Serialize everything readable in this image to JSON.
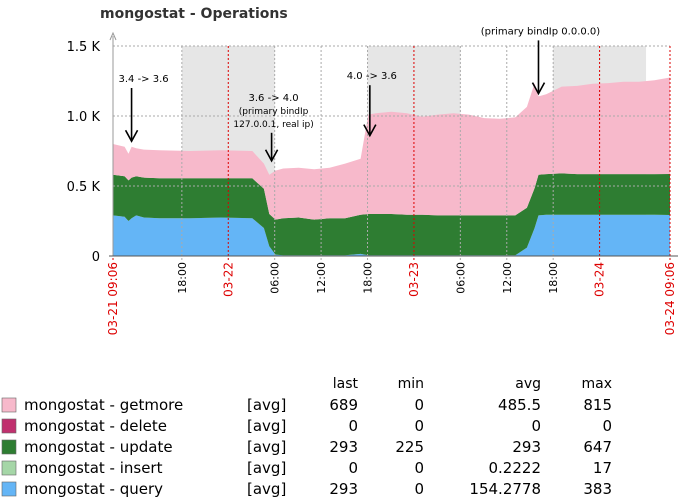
{
  "colors": {
    "getmore": "#f7b9cb",
    "delete": "#c0306e",
    "update": "#2e7d32",
    "insert": "#a5d6a7",
    "query": "#64b5f6",
    "shade": "#e6e6e6",
    "grid": "#aaaaaa",
    "red": "#dd0000"
  },
  "chart_data": {
    "type": "area",
    "title": "mongostat - Operations",
    "stacked": true,
    "ylim": [
      0,
      1500
    ],
    "yticks": [
      {
        "value": 0,
        "label": "0"
      },
      {
        "value": 500,
        "label": "0.5 K"
      },
      {
        "value": 1000,
        "label": "1.0 K"
      },
      {
        "value": 1500,
        "label": "1.5 K"
      }
    ],
    "xlim": [
      0,
      72
    ],
    "x_unit": "hours since 03-21 09:06",
    "xticks": [
      {
        "x": 0,
        "label": "03-21 09:06",
        "style": "red-edge"
      },
      {
        "x": 8.9,
        "label": "18:00",
        "style": "black"
      },
      {
        "x": 14.9,
        "label": "03-22",
        "style": "red"
      },
      {
        "x": 20.9,
        "label": "06:00",
        "style": "black"
      },
      {
        "x": 26.9,
        "label": "12:00",
        "style": "black"
      },
      {
        "x": 32.9,
        "label": "18:00",
        "style": "black"
      },
      {
        "x": 38.9,
        "label": "03-23",
        "style": "red"
      },
      {
        "x": 44.9,
        "label": "06:00",
        "style": "black"
      },
      {
        "x": 50.9,
        "label": "12:00",
        "style": "black"
      },
      {
        "x": 56.9,
        "label": "18:00",
        "style": "black"
      },
      {
        "x": 62.9,
        "label": "03-24",
        "style": "red"
      },
      {
        "x": 72,
        "label": "03-24 09:06",
        "style": "red-edge"
      }
    ],
    "shaded_hours": [
      [
        8.9,
        20.9
      ],
      [
        32.9,
        44.9
      ],
      [
        56.9,
        68.9
      ]
    ],
    "x": [
      0,
      1.5,
      2,
      2.4,
      3,
      4,
      6,
      10,
      14,
      18,
      19.5,
      20.2,
      21,
      22,
      24,
      26,
      28,
      30,
      32,
      33,
      34,
      36,
      38,
      40,
      42,
      44,
      46,
      48,
      50,
      52,
      53.5,
      54.5,
      55,
      56,
      58,
      60,
      62,
      64,
      66,
      68,
      70,
      72
    ],
    "series": [
      {
        "name": "mongostat - query",
        "color_key": "query",
        "values": [
          290,
          280,
          250,
          270,
          290,
          275,
          270,
          270,
          275,
          270,
          200,
          70,
          10,
          5,
          5,
          5,
          5,
          5,
          15,
          5,
          5,
          5,
          5,
          5,
          5,
          5,
          5,
          5,
          5,
          5,
          60,
          200,
          290,
          295,
          295,
          295,
          295,
          295,
          295,
          295,
          295,
          293
        ]
      },
      {
        "name": "mongostat - insert",
        "color_key": "insert",
        "values": [
          0,
          0,
          0,
          0,
          0,
          0,
          0,
          0,
          0,
          0,
          0,
          0,
          0,
          0,
          0,
          0,
          0,
          0,
          0,
          0,
          0,
          0,
          0,
          0,
          0,
          0,
          0,
          0,
          0,
          0,
          0,
          0,
          0,
          0,
          0,
          0,
          0,
          0,
          0,
          0,
          0,
          0
        ]
      },
      {
        "name": "mongostat - update",
        "color_key": "update",
        "values": [
          290,
          290,
          290,
          290,
          280,
          285,
          285,
          285,
          280,
          285,
          280,
          230,
          250,
          265,
          270,
          255,
          265,
          265,
          280,
          295,
          295,
          295,
          290,
          290,
          285,
          285,
          285,
          285,
          285,
          285,
          285,
          285,
          290,
          290,
          295,
          290,
          290,
          290,
          290,
          290,
          290,
          293
        ]
      },
      {
        "name": "mongostat - delete",
        "color_key": "delete",
        "values": [
          0,
          0,
          0,
          0,
          0,
          0,
          0,
          0,
          0,
          0,
          0,
          0,
          0,
          0,
          0,
          0,
          0,
          0,
          0,
          0,
          0,
          0,
          0,
          0,
          0,
          0,
          0,
          0,
          0,
          0,
          0,
          0,
          0,
          0,
          0,
          0,
          0,
          0,
          0,
          0,
          0,
          0
        ]
      },
      {
        "name": "mongostat - getmore",
        "color_key": "getmore",
        "values": [
          220,
          210,
          190,
          220,
          200,
          200,
          200,
          195,
          200,
          195,
          180,
          280,
          350,
          355,
          355,
          360,
          360,
          390,
          400,
          710,
          720,
          730,
          725,
          700,
          720,
          730,
          720,
          695,
          690,
          700,
          720,
          750,
          560,
          570,
          620,
          630,
          645,
          650,
          660,
          660,
          670,
          689
        ]
      }
    ],
    "annotations": [
      {
        "lines": [
          "3.4 -> 3.6"
        ],
        "arrow_x": 2.4,
        "arrow_from": 1200,
        "arrow_to": 820
      },
      {
        "lines": [
          "3.6 -> 4.0",
          "(primary bindIp",
          "127.0.0.1, real ip)"
        ],
        "arrow_x": 20.5,
        "arrow_from": 880,
        "arrow_to": 680
      },
      {
        "lines": [
          "4.0 -> 3.6"
        ],
        "arrow_x": 33.2,
        "arrow_from": 1220,
        "arrow_to": 860
      },
      {
        "lines": [
          "(primary bindIp 0.0.0.0)"
        ],
        "arrow_x": 55,
        "arrow_from": 1540,
        "arrow_to": 1160
      }
    ]
  },
  "legend": {
    "headers": [
      "last",
      "min",
      "avg",
      "max"
    ],
    "rows": [
      {
        "name": "mongostat - getmore",
        "color_key": "getmore",
        "agg": "[avg]",
        "last": "689",
        "min": "0",
        "avg": "485.5",
        "max": "815"
      },
      {
        "name": "mongostat - delete",
        "color_key": "delete",
        "agg": "[avg]",
        "last": "0",
        "min": "0",
        "avg": "0",
        "max": "0"
      },
      {
        "name": "mongostat - update",
        "color_key": "update",
        "agg": "[avg]",
        "last": "293",
        "min": "225",
        "avg": "293",
        "max": "647"
      },
      {
        "name": "mongostat - insert",
        "color_key": "insert",
        "agg": "[avg]",
        "last": "0",
        "min": "0",
        "avg": "0.2222",
        "max": "17"
      },
      {
        "name": "mongostat - query",
        "color_key": "query",
        "agg": "[avg]",
        "last": "293",
        "min": "0",
        "avg": "154.2778",
        "max": "383"
      }
    ]
  }
}
